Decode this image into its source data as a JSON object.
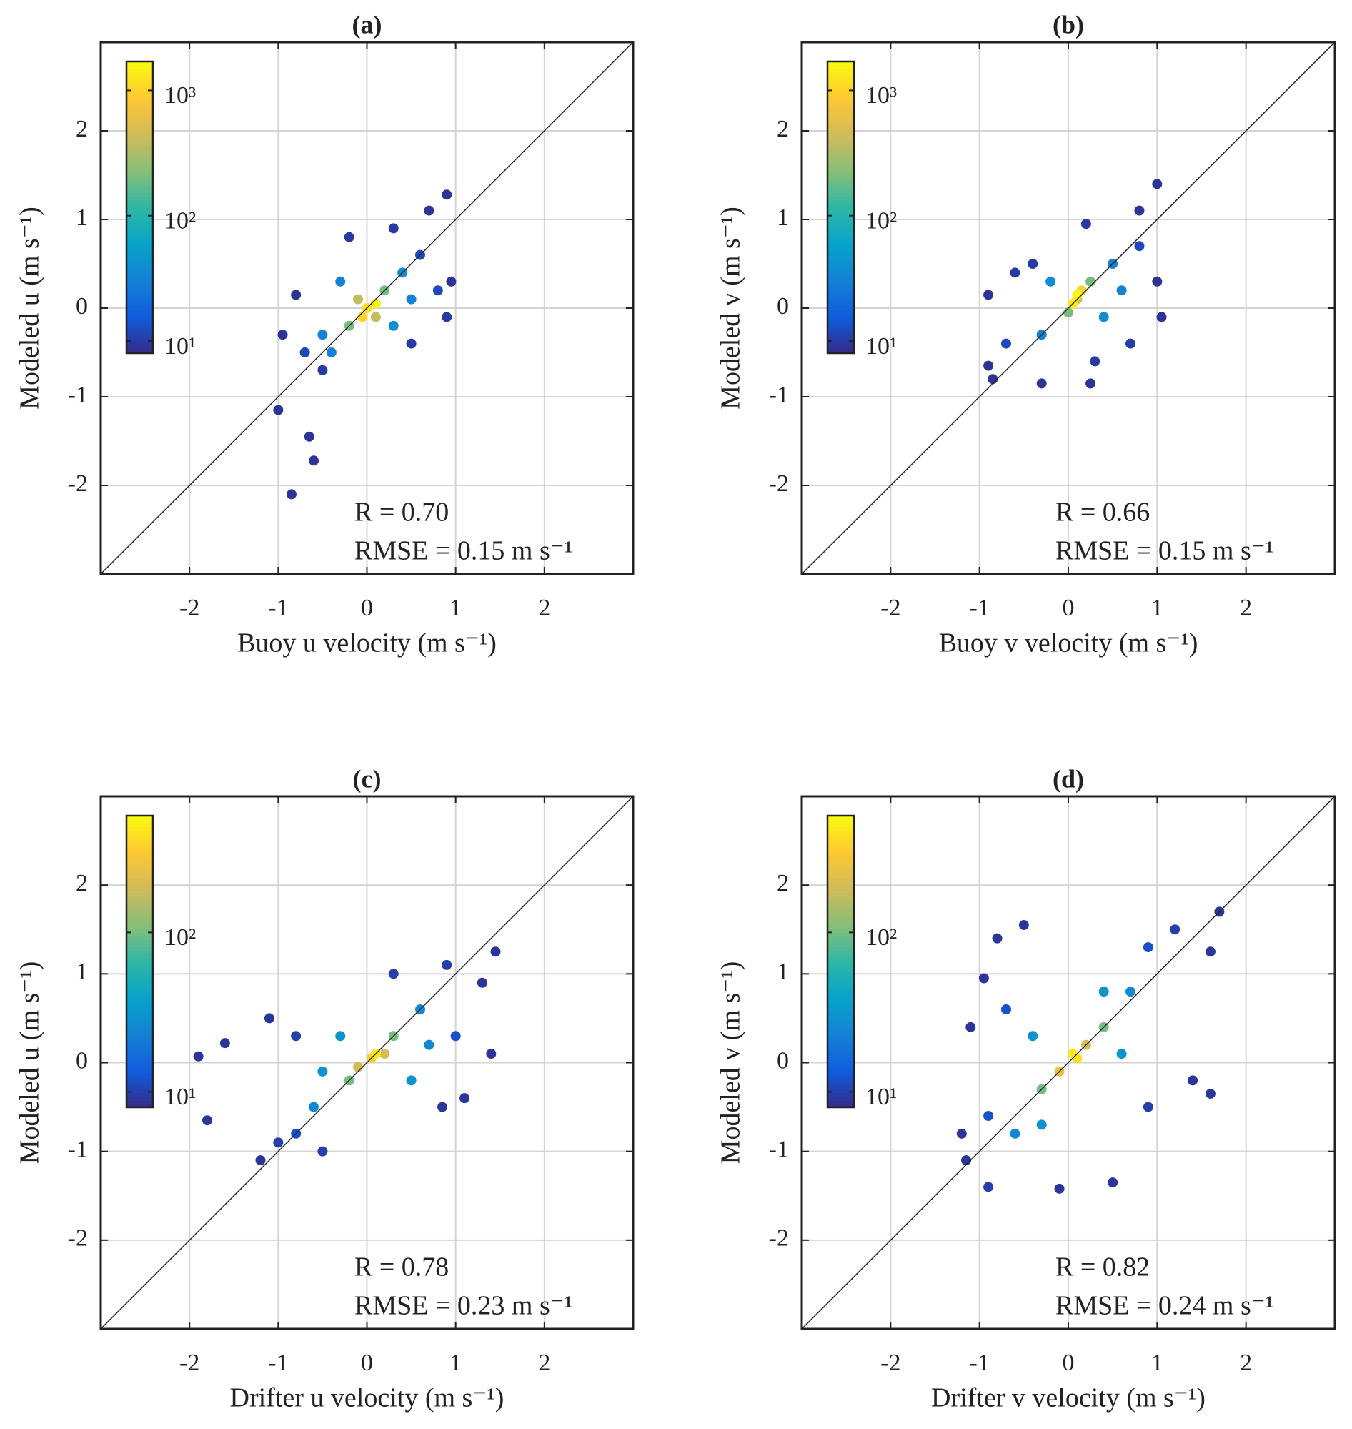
{
  "chart_data": [
    {
      "type": "scatter",
      "title": "(a)",
      "xlabel": "Buoy u velocity (m s⁻¹)",
      "ylabel": "Modeled u (m s⁻¹)",
      "annotations": [
        "R = 0.70",
        "RMSE = 0.15 m s⁻¹"
      ],
      "xlim": [
        -3,
        3
      ],
      "ylim": [
        -3,
        3
      ],
      "xticks": [
        -2,
        -1,
        0,
        1,
        2
      ],
      "yticks": [
        -2,
        -1,
        0,
        1,
        2
      ],
      "grid": true,
      "x": [
        -1.0,
        -0.85,
        -0.6,
        -0.65,
        -0.8,
        -0.95,
        -0.5,
        0.9,
        0.7,
        0.95,
        0.9,
        0.5,
        -0.2,
        0.3,
        -0.7,
        0.6,
        0.8,
        -0.5,
        -0.3,
        0.4,
        0.3,
        -0.4,
        0.5,
        -0.2,
        0.2,
        0.1,
        -0.1,
        0,
        0.1,
        -0.05
      ],
      "y": [
        -1.15,
        -2.1,
        -1.72,
        -1.45,
        0.15,
        -0.3,
        -0.7,
        1.28,
        1.1,
        0.3,
        -0.1,
        -0.4,
        0.8,
        0.9,
        -0.5,
        0.6,
        0.2,
        -0.3,
        0.3,
        0.4,
        -0.2,
        -0.5,
        0.1,
        -0.2,
        0.2,
        -0.1,
        0.1,
        0,
        0.05,
        -0.1
      ],
      "counts": [
        9,
        9,
        9,
        9,
        9,
        9,
        10,
        9,
        9,
        9,
        10,
        10,
        10,
        10,
        12,
        12,
        12,
        30,
        30,
        40,
        40,
        30,
        30,
        200,
        200,
        400,
        400,
        1200,
        1500,
        1000
      ],
      "colorbar": {
        "scale": "log",
        "lim": [
          8,
          1700
        ],
        "ticks": [
          {
            "value": 10,
            "label": "10¹"
          },
          {
            "value": 100,
            "label": "10²"
          },
          {
            "value": 1000,
            "label": "10³"
          }
        ]
      },
      "colormap": [
        "#352a87",
        "#0f5cdd",
        "#1481d6",
        "#06a4ca",
        "#2eb7a4",
        "#87bf77",
        "#d1bb59",
        "#fec832",
        "#f9fb0e"
      ]
    },
    {
      "type": "scatter",
      "title": "(b)",
      "xlabel": "Buoy v velocity (m s⁻¹)",
      "ylabel": "Modeled v (m s⁻¹)",
      "annotations": [
        "R = 0.66",
        "RMSE = 0.15 m s⁻¹"
      ],
      "xlim": [
        -3,
        3
      ],
      "ylim": [
        -3,
        3
      ],
      "xticks": [
        -2,
        -1,
        0,
        1,
        2
      ],
      "yticks": [
        -2,
        -1,
        0,
        1,
        2
      ],
      "grid": true,
      "x": [
        -0.9,
        -0.85,
        -0.9,
        -0.6,
        1.0,
        0.8,
        1.05,
        1.0,
        0.25,
        0.3,
        -0.3,
        0.2,
        -0.4,
        0.7,
        -0.7,
        0.8,
        -0.3,
        0.5,
        0.4,
        -0.2,
        0.6,
        0,
        0.25,
        0.1,
        0.15,
        0.05,
        0.1
      ],
      "y": [
        -0.65,
        -0.8,
        0.15,
        0.4,
        1.4,
        1.1,
        -0.1,
        0.3,
        -0.85,
        -0.6,
        -0.85,
        0.95,
        0.5,
        -0.4,
        -0.4,
        0.7,
        -0.3,
        0.5,
        -0.1,
        0.3,
        0.2,
        -0.05,
        0.3,
        0.1,
        0.2,
        0.05,
        0.15
      ],
      "counts": [
        9,
        9,
        9,
        10,
        9,
        9,
        9,
        9,
        9,
        10,
        9,
        10,
        10,
        10,
        12,
        12,
        30,
        30,
        40,
        40,
        30,
        200,
        200,
        500,
        1000,
        1300,
        1600
      ],
      "colorbar": {
        "scale": "log",
        "lim": [
          8,
          1700
        ],
        "ticks": [
          {
            "value": 10,
            "label": "10¹"
          },
          {
            "value": 100,
            "label": "10²"
          },
          {
            "value": 1000,
            "label": "10³"
          }
        ]
      },
      "colormap": [
        "#352a87",
        "#0f5cdd",
        "#1481d6",
        "#06a4ca",
        "#2eb7a4",
        "#87bf77",
        "#d1bb59",
        "#fec832",
        "#f9fb0e"
      ]
    },
    {
      "type": "scatter",
      "title": "(c)",
      "xlabel": "Drifter u velocity (m s⁻¹)",
      "ylabel": "Modeled u (m s⁻¹)",
      "annotations": [
        "R = 0.78",
        "RMSE = 0.23 m s⁻¹"
      ],
      "xlim": [
        -3,
        3
      ],
      "ylim": [
        -3,
        3
      ],
      "xticks": [
        -2,
        -1,
        0,
        1,
        2
      ],
      "yticks": [
        -2,
        -1,
        0,
        1,
        2
      ],
      "grid": true,
      "x": [
        -1.9,
        -1.8,
        -1.6,
        -1.1,
        -1.2,
        -1.0,
        1.45,
        1.4,
        1.1,
        0.85,
        1.3,
        -0.8,
        -0.5,
        0.3,
        0.9,
        1.0,
        -0.8,
        -0.6,
        0.6,
        0.5,
        -0.3,
        0.7,
        -0.5,
        -0.2,
        0.3,
        0.2,
        -0.1,
        0.05,
        0.1
      ],
      "y": [
        0.07,
        -0.65,
        0.22,
        0.5,
        -1.1,
        -0.9,
        1.25,
        0.1,
        -0.4,
        -0.5,
        0.9,
        0.3,
        -1.0,
        1.0,
        1.1,
        0.3,
        -0.8,
        -0.5,
        0.6,
        -0.2,
        0.3,
        0.2,
        -0.1,
        -0.2,
        0.3,
        0.1,
        -0.05,
        0.05,
        0.1
      ],
      "counts": [
        9,
        9,
        9,
        9,
        9,
        10,
        9,
        9,
        9,
        9,
        9,
        10,
        10,
        10,
        10,
        12,
        12,
        25,
        25,
        30,
        30,
        25,
        30,
        100,
        100,
        200,
        200,
        350,
        450
      ],
      "colorbar": {
        "scale": "log",
        "lim": [
          8,
          540
        ],
        "ticks": [
          {
            "value": 10,
            "label": "10¹"
          },
          {
            "value": 100,
            "label": "10²"
          }
        ]
      },
      "colormap": [
        "#352a87",
        "#0f5cdd",
        "#1481d6",
        "#06a4ca",
        "#2eb7a4",
        "#87bf77",
        "#d1bb59",
        "#fec832",
        "#f9fb0e"
      ]
    },
    {
      "type": "scatter",
      "title": "(d)",
      "xlabel": "Drifter v velocity (m s⁻¹)",
      "ylabel": "Modeled v (m s⁻¹)",
      "annotations": [
        "R = 0.82",
        "RMSE = 0.24 m s⁻¹"
      ],
      "xlim": [
        -3,
        3
      ],
      "ylim": [
        -3,
        3
      ],
      "xticks": [
        -2,
        -1,
        0,
        1,
        2
      ],
      "yticks": [
        -2,
        -1,
        0,
        1,
        2
      ],
      "grid": true,
      "x": [
        -1.15,
        -0.8,
        -0.5,
        -0.95,
        -1.2,
        0.5,
        -0.1,
        1.7,
        1.6,
        1.6,
        1.4,
        -1.1,
        0.9,
        -0.9,
        1.2,
        -0.7,
        0.9,
        -0.9,
        -0.6,
        0.7,
        0.6,
        -0.4,
        -0.3,
        0.4,
        -0.3,
        0.4,
        0.2,
        -0.1,
        0.1,
        0.05
      ],
      "y": [
        -1.1,
        1.4,
        1.55,
        0.95,
        -0.8,
        -1.35,
        -1.42,
        1.7,
        -0.35,
        1.25,
        -0.2,
        0.4,
        -0.5,
        -1.4,
        1.5,
        0.6,
        1.3,
        -0.6,
        -0.8,
        0.8,
        0.1,
        0.3,
        -0.7,
        0.8,
        -0.3,
        0.4,
        0.2,
        -0.1,
        0.05,
        0.1
      ],
      "counts": [
        9,
        9,
        9,
        9,
        9,
        9,
        9,
        9,
        9,
        9,
        9,
        9,
        10,
        10,
        10,
        12,
        12,
        12,
        25,
        25,
        30,
        30,
        30,
        30,
        100,
        100,
        200,
        250,
        400,
        450
      ],
      "colorbar": {
        "scale": "log",
        "lim": [
          8,
          540
        ],
        "ticks": [
          {
            "value": 10,
            "label": "10¹"
          },
          {
            "value": 100,
            "label": "10²"
          }
        ]
      },
      "colormap": [
        "#352a87",
        "#0f5cdd",
        "#1481d6",
        "#06a4ca",
        "#2eb7a4",
        "#87bf77",
        "#d1bb59",
        "#fec832",
        "#f9fb0e"
      ]
    }
  ]
}
